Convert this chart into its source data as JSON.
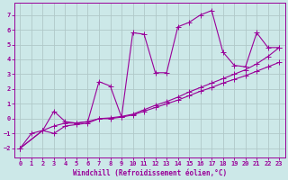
{
  "xlabel": "Windchill (Refroidissement éolien,°C)",
  "bg_color": "#cce8e8",
  "grid_color": "#b0c8c8",
  "line_color": "#990099",
  "xlim": [
    -0.5,
    23.5
  ],
  "ylim": [
    -2.6,
    7.8
  ],
  "xticks": [
    0,
    1,
    2,
    3,
    4,
    5,
    6,
    7,
    8,
    9,
    10,
    11,
    12,
    13,
    14,
    15,
    16,
    17,
    18,
    19,
    20,
    21,
    22,
    23
  ],
  "yticks": [
    -2,
    -1,
    0,
    1,
    2,
    3,
    4,
    5,
    6,
    7
  ],
  "s1_x": [
    0,
    1,
    2,
    3,
    4,
    5,
    6,
    7,
    8,
    9,
    10,
    11,
    12,
    13,
    14,
    15,
    16,
    17,
    18,
    19,
    20,
    21,
    22,
    23
  ],
  "s1_y": [
    -2,
    -1,
    -0.8,
    0.5,
    -0.2,
    -0.3,
    -0.2,
    2.5,
    2.2,
    0.1,
    5.8,
    5.7,
    3.1,
    3.1,
    6.2,
    6.5,
    7.0,
    7.3,
    4.5,
    3.6,
    3.5,
    5.8,
    4.8,
    4.8
  ],
  "s2_x": [
    0,
    2,
    3,
    4,
    5,
    6,
    7,
    8,
    9,
    10,
    11,
    12,
    13,
    14,
    15,
    16,
    17,
    18,
    19,
    20,
    21,
    22,
    23
  ],
  "s2_y": [
    -2,
    -0.8,
    -1.0,
    -0.5,
    -0.4,
    -0.3,
    0.0,
    0.0,
    0.1,
    0.25,
    0.5,
    0.75,
    1.0,
    1.25,
    1.55,
    1.85,
    2.1,
    2.4,
    2.65,
    2.9,
    3.2,
    3.5,
    3.8
  ],
  "s3_x": [
    0,
    2,
    3,
    4,
    5,
    6,
    7,
    8,
    9,
    10,
    11,
    12,
    13,
    14,
    15,
    16,
    17,
    18,
    19,
    20,
    21,
    22,
    23
  ],
  "s3_y": [
    -2,
    -0.8,
    -0.5,
    -0.3,
    -0.3,
    -0.2,
    0.0,
    0.05,
    0.15,
    0.3,
    0.6,
    0.9,
    1.15,
    1.45,
    1.8,
    2.1,
    2.4,
    2.7,
    3.0,
    3.3,
    3.7,
    4.2,
    4.8
  ],
  "font_family": "monospace",
  "tick_fontsize": 5.0,
  "xlabel_fontsize": 5.5
}
